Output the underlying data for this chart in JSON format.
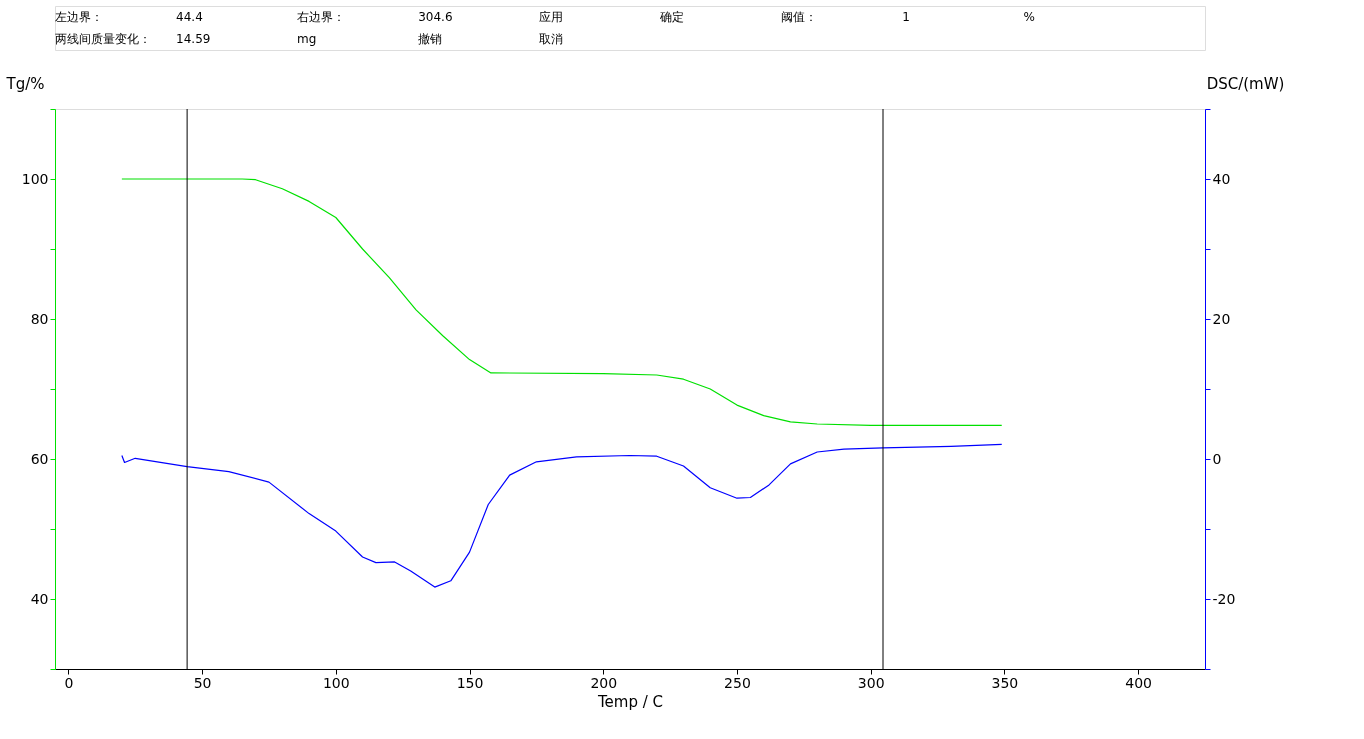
{
  "chart_data": {
    "type": "line",
    "xlabel": "Temp / C",
    "ylabel": "Tg/%",
    "y2label": "DSC/(mW)",
    "annotations": [
      "左边界：",
      "44.4",
      "右边界：",
      "304.6",
      "应用",
      "确定",
      "阈值：",
      "1",
      "%",
      "两线间质量变化：",
      "14.59",
      "mg",
      "撤销",
      "取消"
    ],
    "xlim": [
      -5,
      425
    ],
    "xticks": [
      0,
      50,
      100,
      150,
      200,
      250,
      300,
      350,
      400
    ],
    "ylim": [
      30,
      110
    ],
    "yticks": [
      {
        "value": 30,
        "label": null
      },
      40,
      {
        "value": 50,
        "label": null
      },
      60,
      {
        "value": 70,
        "label": null
      },
      80,
      {
        "value": 90,
        "label": null
      },
      100,
      {
        "value": 110,
        "label": null
      }
    ],
    "y2lim": [
      -30,
      50
    ],
    "y2ticks": [
      {
        "value": -30,
        "label": null
      },
      -20,
      {
        "value": -10,
        "label": null
      },
      0,
      {
        "value": 10,
        "label": null
      },
      20,
      {
        "value": 30,
        "label": null
      },
      40,
      {
        "value": 50,
        "label": null
      }
    ],
    "grid": false,
    "marker": "none",
    "line_style": "solid",
    "ref_lines": [
      {
        "axis": "x",
        "value": 44.4,
        "color": "#000000"
      },
      {
        "axis": "x",
        "value": 304.6,
        "color": "#000000"
      }
    ],
    "series": [
      {
        "color": "#00e000",
        "x": [
          20,
          45,
          65,
          70,
          80,
          90,
          100,
          110,
          120,
          130,
          140,
          150,
          158,
          200,
          220,
          230,
          240,
          250,
          260,
          270,
          280,
          300,
          349
        ],
        "values": [
          100,
          100,
          100,
          99.9,
          98.6,
          96.8,
          94.5,
          90,
          85.9,
          81.3,
          77.6,
          74.2,
          72.3,
          72.2,
          72,
          71.4,
          70,
          67.7,
          66.2,
          65.3,
          65,
          64.8,
          64.8
        ]
      },
      {
        "color": "#0000ff",
        "axis": "y2",
        "x": [
          20,
          21,
          25,
          44.4,
          60,
          75,
          90,
          100,
          110,
          115,
          122,
          128,
          137,
          143,
          150,
          157,
          165,
          175,
          190,
          210,
          220,
          230,
          240,
          250,
          255,
          262,
          270,
          280,
          290,
          304.6,
          330,
          349
        ],
        "values": [
          0.5,
          -0.5,
          0.1,
          -1.1,
          -1.8,
          -3.3,
          -7.8,
          -10.3,
          -14,
          -14.8,
          -14.7,
          -16,
          -18.3,
          -17.4,
          -13.3,
          -6.5,
          -2.3,
          -0.4,
          0.3,
          0.5,
          0.4,
          -1,
          -4.1,
          -5.6,
          -5.5,
          -3.7,
          -0.7,
          1,
          1.4,
          1.6,
          1.8,
          2.1
        ]
      }
    ]
  }
}
